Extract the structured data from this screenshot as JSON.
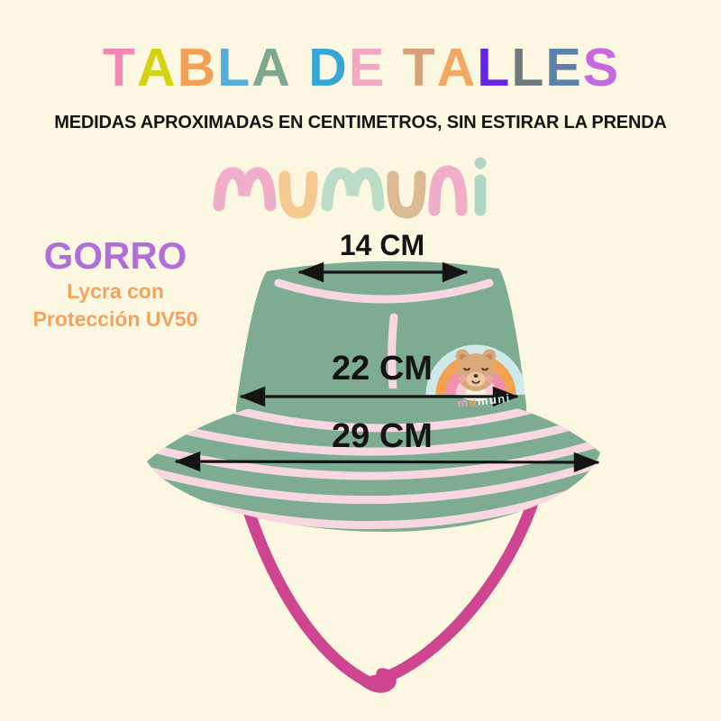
{
  "page": {
    "background_color": "#fcf7e1"
  },
  "header": {
    "title_text": "TABLA DE TALLES",
    "title_letters": [
      {
        "ch": "T",
        "color": "#f287b6"
      },
      {
        "ch": "A",
        "color": "#d3d312"
      },
      {
        "ch": "B",
        "color": "#f3a057"
      },
      {
        "ch": "L",
        "color": "#55add8"
      },
      {
        "ch": "A",
        "color": "#7fa891"
      },
      {
        "ch": " ",
        "color": ""
      },
      {
        "ch": "D",
        "color": "#36a6d7"
      },
      {
        "ch": "E",
        "color": "#f2a7c3"
      },
      {
        "ch": " ",
        "color": ""
      },
      {
        "ch": "T",
        "color": "#d5a079"
      },
      {
        "ch": "A",
        "color": "#f3a764"
      },
      {
        "ch": "L",
        "color": "#6724e0"
      },
      {
        "ch": "L",
        "color": "#6f7a7d"
      },
      {
        "ch": "E",
        "color": "#5d80a8"
      },
      {
        "ch": "S",
        "color": "#c569dd"
      }
    ],
    "subtitle": "MEDIDAS APROXIMADAS EN CENTIMETROS, SIN ESTIRAR LA PRENDA",
    "subtitle_color": "#151515"
  },
  "brand": {
    "name": "mumuni",
    "letter_colors": [
      "#f0aecb",
      "#f6c990",
      "#bcdcca",
      "#dcba96",
      "#f0aecb",
      "#aed8c4"
    ]
  },
  "product": {
    "name": "GORRO",
    "name_color": "#b06fd8",
    "material_line1": "Lycra con",
    "material_line2": "Protección UV50",
    "material_color": "#f2a35f"
  },
  "hat": {
    "fabric_color": "#7dac93",
    "stitch_color": "#f8d8e0",
    "strap_color": "#ce4590",
    "arrow_color": "#141414"
  },
  "measurements": {
    "crown_top": {
      "label": "14 CM"
    },
    "head_opening": {
      "label": "22 CM"
    },
    "brim": {
      "label": "29 CM"
    }
  },
  "patch": {
    "word": "mumuni",
    "word_letters": [
      {
        "ch": "m",
        "color": "#f49dc0"
      },
      {
        "ch": "u",
        "color": "#f2a14f"
      },
      {
        "ch": "m",
        "color": "#fdfaf0"
      },
      {
        "ch": "u",
        "color": "#fdfaf0"
      },
      {
        "ch": "n",
        "color": "#bfe3d6"
      },
      {
        "ch": "i",
        "color": "#bfe3d6"
      }
    ],
    "rainbow_colors": [
      "#cfe9ea",
      "#f2a14f",
      "#f08fb2",
      "#f8cdd9"
    ],
    "bear_color": "#d9a878"
  }
}
